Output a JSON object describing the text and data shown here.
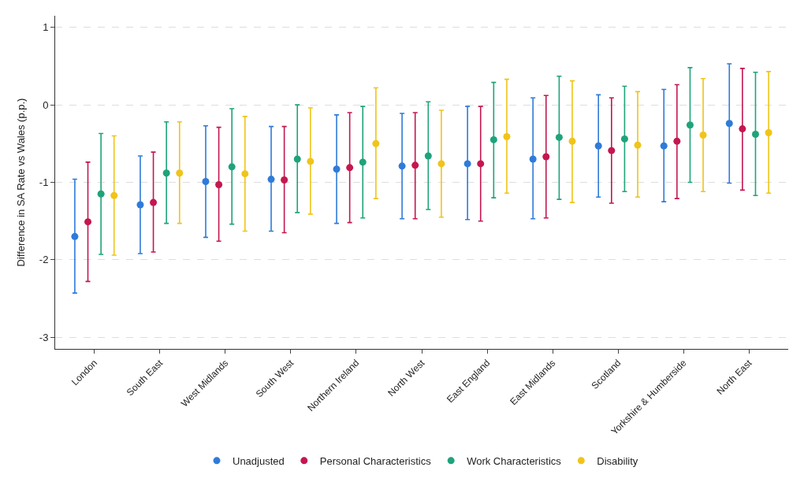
{
  "chart_data": {
    "type": "scatter",
    "ylabel": "Difference in SA Rate vs Wales (p.p.)",
    "categories": [
      "London",
      "South East",
      "West Midlands",
      "South West",
      "Northern Ireland",
      "North West",
      "East England",
      "East Midlands",
      "Scotland",
      "Yorkshire & Humberside",
      "North East"
    ],
    "series": [
      {
        "name": "Unadjusted",
        "color": "#2f7bd9",
        "values": [
          -1.7,
          -1.29,
          -0.99,
          -0.96,
          -0.83,
          -0.79,
          -0.76,
          -0.7,
          -0.53,
          -0.53,
          -0.24
        ],
        "errors": [
          [
            -2.43,
            -0.96
          ],
          [
            -1.92,
            -0.66
          ],
          [
            -1.71,
            -0.27
          ],
          [
            -1.63,
            -0.28
          ],
          [
            -1.53,
            -0.13
          ],
          [
            -1.47,
            -0.11
          ],
          [
            -1.48,
            -0.02
          ],
          [
            -1.47,
            0.09
          ],
          [
            -1.19,
            0.13
          ],
          [
            -1.25,
            0.2
          ],
          [
            -1.01,
            0.53
          ]
        ]
      },
      {
        "name": "Personal Characteristics",
        "color": "#c4174f",
        "values": [
          -1.51,
          -1.26,
          -1.03,
          -0.97,
          -0.81,
          -0.78,
          -0.76,
          -0.67,
          -0.59,
          -0.47,
          -0.31
        ],
        "errors": [
          [
            -2.28,
            -0.74
          ],
          [
            -1.9,
            -0.61
          ],
          [
            -1.76,
            -0.29
          ],
          [
            -1.65,
            -0.28
          ],
          [
            -1.52,
            -0.1
          ],
          [
            -1.47,
            -0.1
          ],
          [
            -1.5,
            -0.02
          ],
          [
            -1.46,
            0.12
          ],
          [
            -1.27,
            0.09
          ],
          [
            -1.21,
            0.26
          ],
          [
            -1.1,
            0.47
          ]
        ]
      },
      {
        "name": "Work Characteristics",
        "color": "#1fa37a",
        "values": [
          -1.15,
          -0.88,
          -0.8,
          -0.7,
          -0.74,
          -0.66,
          -0.45,
          -0.42,
          -0.44,
          -0.26,
          -0.38
        ],
        "errors": [
          [
            -1.93,
            -0.37
          ],
          [
            -1.53,
            -0.22
          ],
          [
            -1.54,
            -0.05
          ],
          [
            -1.39,
            0.0
          ],
          [
            -1.46,
            -0.02
          ],
          [
            -1.35,
            0.04
          ],
          [
            -1.2,
            0.29
          ],
          [
            -1.22,
            0.37
          ],
          [
            -1.12,
            0.24
          ],
          [
            -1.0,
            0.48
          ],
          [
            -1.17,
            0.42
          ]
        ]
      },
      {
        "name": "Disability",
        "color": "#f0c419",
        "values": [
          -1.17,
          -0.88,
          -0.89,
          -0.73,
          -0.5,
          -0.76,
          -0.41,
          -0.47,
          -0.52,
          -0.39,
          -0.36
        ],
        "errors": [
          [
            -1.94,
            -0.4
          ],
          [
            -1.53,
            -0.22
          ],
          [
            -1.63,
            -0.15
          ],
          [
            -1.41,
            -0.04
          ],
          [
            -1.21,
            0.22
          ],
          [
            -1.45,
            -0.07
          ],
          [
            -1.14,
            0.33
          ],
          [
            -1.26,
            0.31
          ],
          [
            -1.19,
            0.17
          ],
          [
            -1.12,
            0.34
          ],
          [
            -1.14,
            0.43
          ]
        ]
      }
    ],
    "ylim": [
      -3.15,
      1.15
    ],
    "yticks": [
      -3,
      -2,
      -1,
      0,
      1
    ],
    "grid": "y",
    "legend": "bottom",
    "marker": "circle"
  }
}
